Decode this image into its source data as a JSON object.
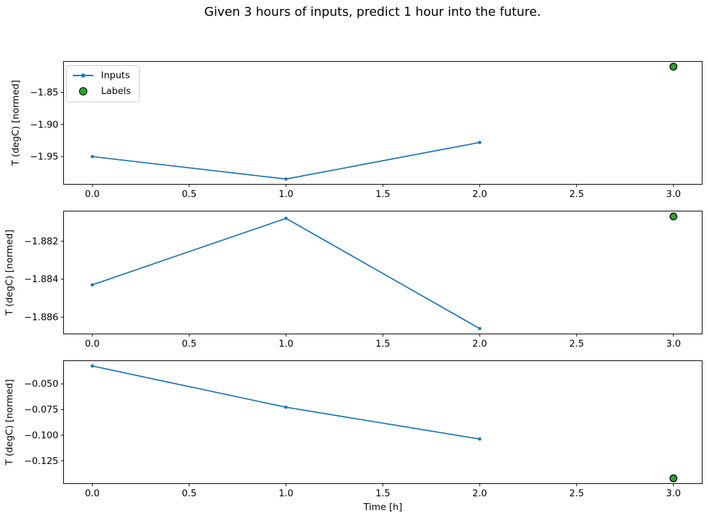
{
  "figure": {
    "title": "Given 3 hours of inputs, predict 1 hour into the future.",
    "background": "#ffffff"
  },
  "colors": {
    "inputs_line": "#1f77b4",
    "labels_fill": "#2ca02c",
    "labels_edge": "#000000",
    "axis": "#000000",
    "legend_border": "#cccccc"
  },
  "legend": {
    "position": "upper-left-subplot-1",
    "items": [
      {
        "label": "Inputs",
        "marker": "line-with-dot"
      },
      {
        "label": "Labels",
        "marker": "filled-circle"
      }
    ]
  },
  "chart_data": [
    {
      "type": "line",
      "title": "",
      "xlabel": "",
      "ylabel": "T (degC) [normed]",
      "xlim": [
        -0.15,
        3.15
      ],
      "ylim": [
        -1.99375,
        -1.80125
      ],
      "grid": false,
      "xticks": [
        {
          "v": 0.0,
          "label": "0.0"
        },
        {
          "v": 0.5,
          "label": "0.5"
        },
        {
          "v": 1.0,
          "label": "1.0"
        },
        {
          "v": 1.5,
          "label": "1.5"
        },
        {
          "v": 2.0,
          "label": "2.0"
        },
        {
          "v": 2.5,
          "label": "2.5"
        },
        {
          "v": 3.0,
          "label": "3.0"
        }
      ],
      "yticks": [
        {
          "v": -1.85,
          "label": "−1.85"
        },
        {
          "v": -1.9,
          "label": "−1.90"
        },
        {
          "v": -1.95,
          "label": "−1.95"
        }
      ],
      "series": [
        {
          "name": "Inputs",
          "x": [
            0,
            1,
            2
          ],
          "y": [
            -1.95,
            -1.985,
            -1.928
          ]
        }
      ],
      "scatter": [
        {
          "name": "Labels",
          "x": [
            3
          ],
          "y": [
            -1.81
          ]
        }
      ],
      "legend_visible": true
    },
    {
      "type": "line",
      "title": "",
      "xlabel": "",
      "ylabel": "T (degC) [normed]",
      "xlim": [
        -0.15,
        3.15
      ],
      "ylim": [
        -1.8869,
        -1.8804
      ],
      "grid": false,
      "xticks": [
        {
          "v": 0.0,
          "label": "0.0"
        },
        {
          "v": 0.5,
          "label": "0.5"
        },
        {
          "v": 1.0,
          "label": "1.0"
        },
        {
          "v": 1.5,
          "label": "1.5"
        },
        {
          "v": 2.0,
          "label": "2.0"
        },
        {
          "v": 2.5,
          "label": "2.5"
        },
        {
          "v": 3.0,
          "label": "3.0"
        }
      ],
      "yticks": [
        {
          "v": -1.882,
          "label": "−1.882"
        },
        {
          "v": -1.884,
          "label": "−1.884"
        },
        {
          "v": -1.886,
          "label": "−1.886"
        }
      ],
      "series": [
        {
          "name": "Inputs",
          "x": [
            0,
            1,
            2
          ],
          "y": [
            -1.8843,
            -1.8808,
            -1.8866
          ]
        }
      ],
      "scatter": [
        {
          "name": "Labels",
          "x": [
            3
          ],
          "y": [
            -1.8807
          ]
        }
      ],
      "legend_visible": false
    },
    {
      "type": "line",
      "title": "",
      "xlabel": "Time [h]",
      "ylabel": "T (degC) [normed]",
      "xlim": [
        -0.15,
        3.15
      ],
      "ylim": [
        -0.147575,
        -0.027125
      ],
      "grid": false,
      "xticks": [
        {
          "v": 0.0,
          "label": "0.0"
        },
        {
          "v": 0.5,
          "label": "0.5"
        },
        {
          "v": 1.0,
          "label": "1.0"
        },
        {
          "v": 1.5,
          "label": "1.5"
        },
        {
          "v": 2.0,
          "label": "2.0"
        },
        {
          "v": 2.5,
          "label": "2.5"
        },
        {
          "v": 3.0,
          "label": "3.0"
        }
      ],
      "yticks": [
        {
          "v": -0.05,
          "label": "−0.050"
        },
        {
          "v": -0.075,
          "label": "−0.075"
        },
        {
          "v": -0.1,
          "label": "−0.100"
        },
        {
          "v": -0.125,
          "label": "−0.125"
        }
      ],
      "series": [
        {
          "name": "Inputs",
          "x": [
            0,
            1,
            2
          ],
          "y": [
            -0.0326,
            -0.0728,
            -0.1038
          ]
        }
      ],
      "scatter": [
        {
          "name": "Labels",
          "x": [
            3
          ],
          "y": [
            -0.1421
          ]
        }
      ],
      "legend_visible": false
    }
  ]
}
